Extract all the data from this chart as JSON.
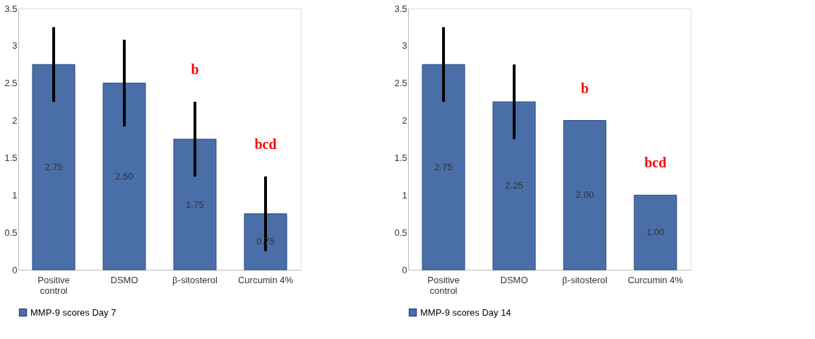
{
  "chart_data": [
    {
      "type": "bar",
      "categories": [
        "Positive control",
        "DSMO",
        "β-sitosterol",
        "Curcumin 4%"
      ],
      "series": [
        {
          "name": "MMP-9  scores Day 7",
          "color": "#4a6ea8",
          "values": [
            2.75,
            2.5,
            1.75,
            0.75
          ],
          "errors": [
            0.5,
            0.58,
            0.5,
            0.5
          ],
          "value_labels": [
            "2.75",
            "2.50",
            "1.75",
            "0.75"
          ]
        }
      ],
      "annotations": [
        "b",
        "bcd"
      ],
      "ylim": [
        0,
        3.5
      ],
      "yticks": [
        0,
        0.5,
        1,
        1.5,
        2,
        2.5,
        3,
        3.5
      ],
      "grid": false,
      "legend": "bottom"
    },
    {
      "type": "bar",
      "categories": [
        "Positive control",
        "DSMO",
        "β-sitosterol",
        "Curcumin 4%"
      ],
      "series": [
        {
          "name": "MMP-9  scores Day 14",
          "color": "#4a6ea8",
          "values": [
            2.75,
            2.25,
            2.0,
            1.0
          ],
          "errors": [
            0.5,
            0.5,
            0,
            0
          ],
          "value_labels": [
            "2.75",
            "2.25",
            "2.00",
            "1.00"
          ]
        }
      ],
      "annotations": [
        "b",
        "bcd"
      ],
      "ylim": [
        0,
        3.5
      ],
      "yticks": [
        0,
        0.5,
        1,
        1.5,
        2,
        2.5,
        3,
        3.5
      ],
      "grid": false,
      "legend": "bottom"
    }
  ]
}
